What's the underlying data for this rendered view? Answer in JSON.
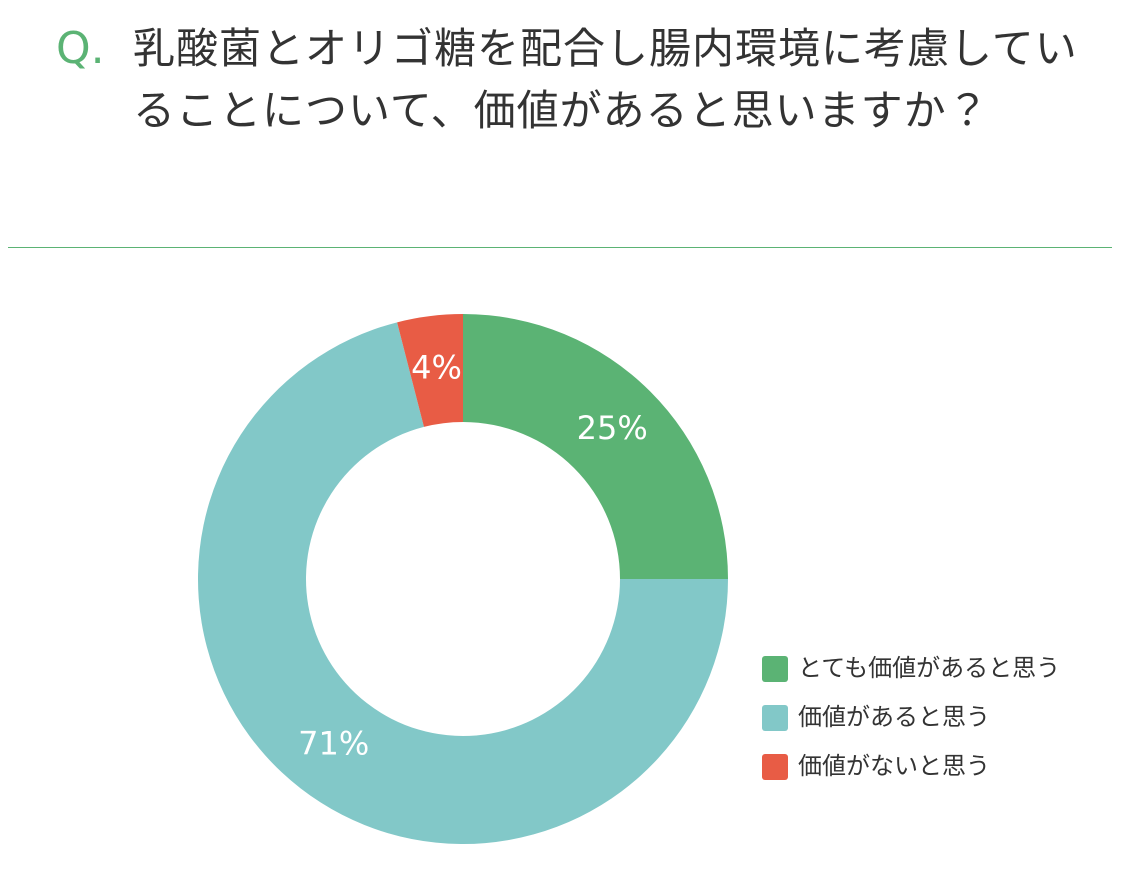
{
  "chart_data": {
    "type": "donut",
    "title_prefix": "Q.",
    "title": "乳酸菌とオリゴ糖を配合し腸内環境に考慮していることについて、価値があると思いますか？",
    "categories": [
      "とても価値があると思う",
      "価値があると思う",
      "価値がないと思う"
    ],
    "values": [
      25,
      71,
      4
    ],
    "value_labels": [
      "25%",
      "71%",
      "4%"
    ],
    "colors": [
      "#5bb374",
      "#82c8c8",
      "#e85c45"
    ],
    "legend": "right"
  }
}
